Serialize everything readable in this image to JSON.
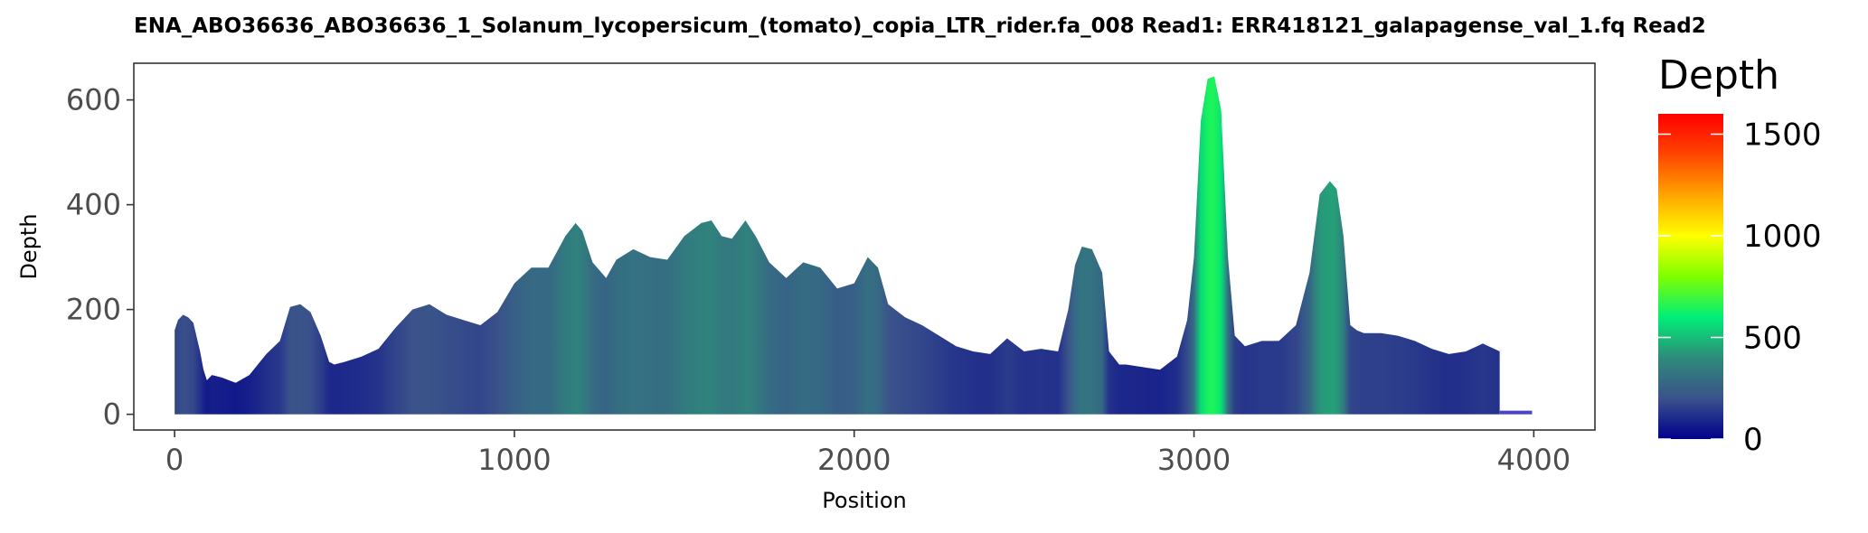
{
  "chart_data": {
    "type": "area",
    "title": "ENA_ABO36636_ABO36636_1_Solanum_lycopersicum_(tomato)_copia_LTR_rider.fa_008   Read1: ERR418121_galapagense_val_1.fq   Read2",
    "xlabel": "Position",
    "ylabel": "Depth",
    "xlim": [
      -120,
      4180
    ],
    "ylim": [
      -30,
      670
    ],
    "xticks": [
      0,
      1000,
      2000,
      3000,
      4000
    ],
    "yticks": [
      0,
      200,
      400,
      600
    ],
    "grid": false,
    "legend": {
      "title": "Depth",
      "position": "right",
      "range": [
        0,
        1600
      ],
      "ticks": [
        0,
        500,
        1000,
        1500
      ],
      "colors": [
        "#00008b",
        "#3b528b",
        "#2e8b7a",
        "#00ee76",
        "#7fff00",
        "#ffff00",
        "#ffa500",
        "#ff4500",
        "#ff0000"
      ]
    },
    "series": [
      {
        "x": [
          0,
          10,
          25,
          40,
          55,
          75,
          85,
          95,
          110,
          140,
          180,
          220,
          270,
          310,
          340,
          370,
          400,
          430,
          455,
          470,
          500,
          550,
          600,
          650,
          700,
          750,
          800,
          850,
          900,
          950,
          1000,
          1050,
          1100,
          1150,
          1180,
          1200,
          1230,
          1270,
          1300,
          1350,
          1400,
          1450,
          1500,
          1550,
          1580,
          1610,
          1640,
          1680,
          1710,
          1750,
          1800,
          1850,
          1900,
          1950,
          2000,
          2040,
          2070,
          2100,
          2150,
          2200,
          2250,
          2300,
          2350,
          2400,
          2450,
          2500,
          2550,
          2600,
          2630,
          2650,
          2670,
          2700,
          2730,
          2750,
          2780,
          2800,
          2850,
          2900,
          2950,
          2980,
          3000,
          3020,
          3040,
          3060,
          3080,
          3100,
          3120,
          3150,
          3200,
          3250,
          3300,
          3340,
          3370,
          3400,
          3420,
          3440,
          3460,
          3480,
          3500,
          3550,
          3600,
          3650,
          3700,
          3750,
          3800,
          3850,
          3900,
          3920,
          3930,
          3935,
          3995
        ],
        "y": [
          160,
          180,
          190,
          185,
          175,
          120,
          85,
          65,
          75,
          70,
          60,
          75,
          115,
          140,
          205,
          210,
          195,
          150,
          100,
          95,
          100,
          110,
          125,
          165,
          200,
          210,
          190,
          180,
          170,
          195,
          250,
          280,
          280,
          340,
          365,
          350,
          290,
          260,
          295,
          315,
          300,
          295,
          340,
          365,
          370,
          340,
          335,
          370,
          340,
          290,
          260,
          290,
          280,
          240,
          250,
          300,
          280,
          210,
          185,
          170,
          150,
          130,
          120,
          115,
          145,
          120,
          125,
          120,
          200,
          285,
          320,
          315,
          270,
          120,
          95,
          95,
          90,
          85,
          110,
          180,
          300,
          560,
          640,
          645,
          580,
          300,
          150,
          130,
          140,
          140,
          170,
          270,
          420,
          445,
          430,
          340,
          170,
          160,
          155,
          155,
          150,
          140,
          125,
          115,
          120,
          135,
          120,
          3,
          3,
          3,
          3
        ]
      }
    ]
  }
}
